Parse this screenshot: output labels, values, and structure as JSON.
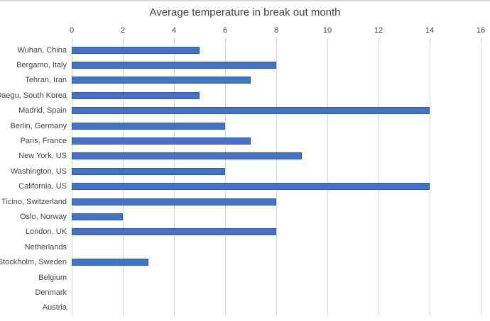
{
  "page": {
    "top_border_color": "#D6D6D6",
    "background_color": "#FFFFFF"
  },
  "chart_data": {
    "type": "bar",
    "orientation": "horizontal",
    "title": "Average temperature in break out month",
    "xlabel": "",
    "ylabel": "",
    "xlim": [
      0,
      16
    ],
    "x_ticks": [
      0,
      2,
      4,
      6,
      8,
      10,
      12,
      14,
      16
    ],
    "grid": "vertical",
    "legend": "none",
    "axis_position": "top",
    "categories": [
      "Wuhan, China",
      "Bergamo, Italy",
      "Tehran, Iran",
      "Daegu, South Korea",
      "Madrid, Spain",
      "Berlin, Germany",
      "Paris, France",
      "New York, US",
      "Washington, US",
      "California, US",
      "Ticino, Switzerland",
      "Oslo, Norway",
      "London, UK",
      "Netherlands",
      "Stockholm, Sweden",
      "Belgium",
      "Denmark",
      "Austria"
    ],
    "values": [
      5,
      8,
      7,
      5,
      14,
      6,
      7,
      9,
      6,
      14,
      8,
      2,
      8,
      0,
      3,
      0,
      0,
      0
    ],
    "bar_color": "#4472C4",
    "bar_border_color": "#2E5AA6",
    "gridline_color": "#D9D9D9",
    "tick_color": "#C8C8C8",
    "text_color": "#444444",
    "title_color": "#3F3F3F"
  }
}
